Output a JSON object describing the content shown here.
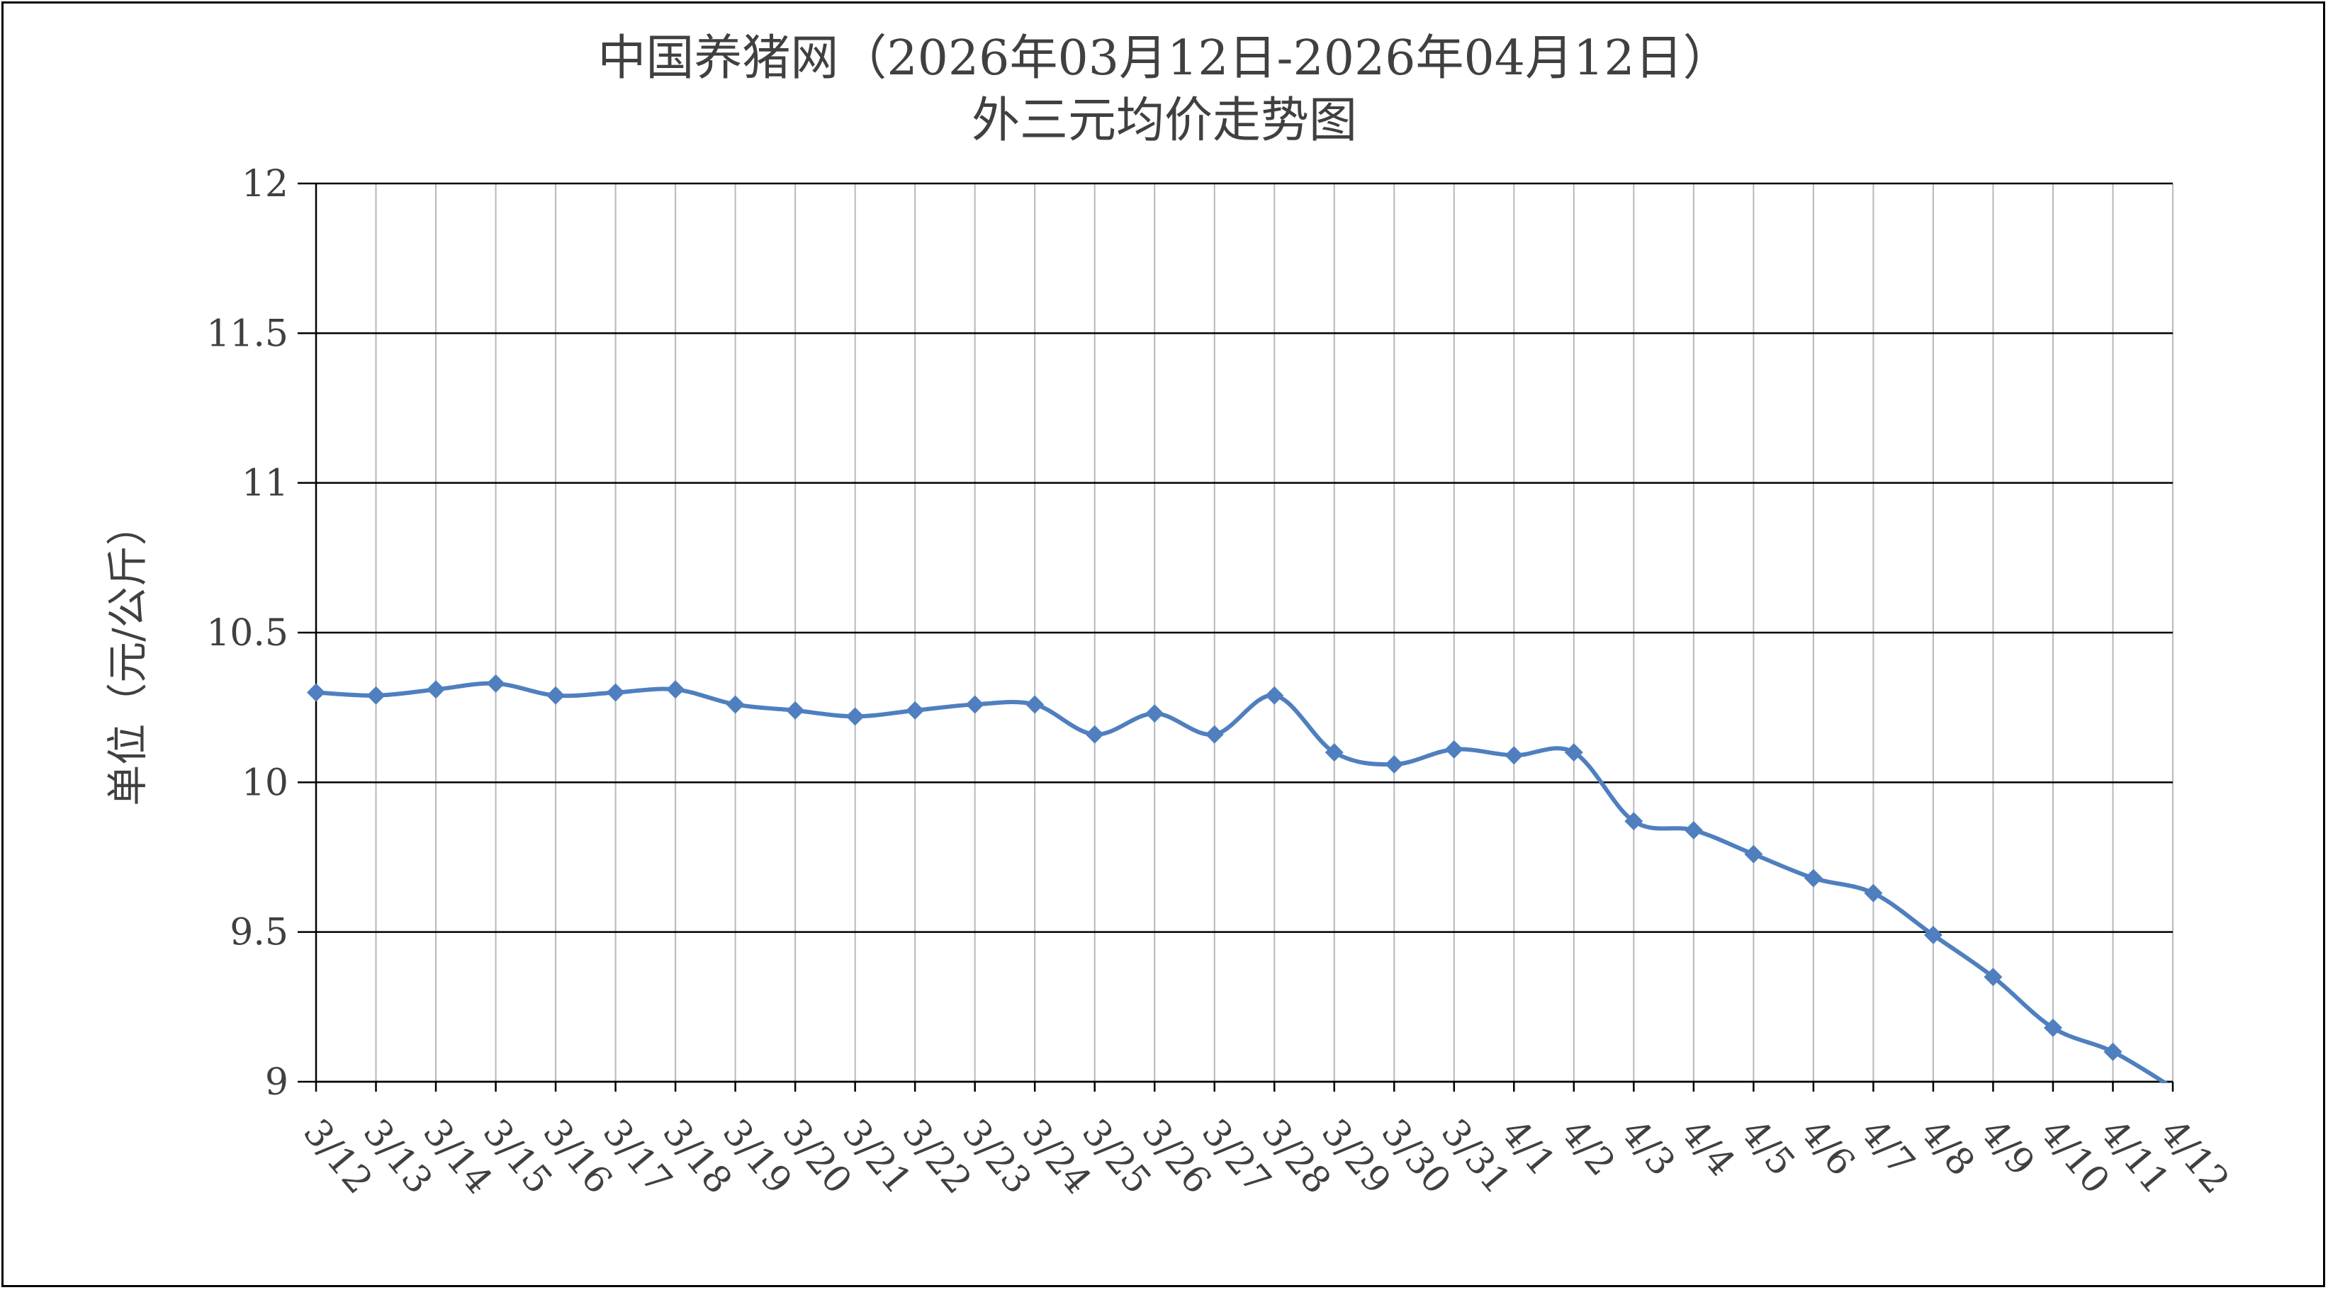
{
  "chart_data": {
    "type": "line",
    "title": "中国养猪网（2026年03月12日-2026年04月12日）",
    "subtitle": "外三元均价走势图",
    "ylabel": "单位（元/公斤）",
    "xlabel": "",
    "ylim": [
      9,
      12
    ],
    "yticks": [
      "9",
      "9.5",
      "10",
      "10.5",
      "11",
      "11.5",
      "12"
    ],
    "ytick_values": [
      9,
      9.5,
      10,
      10.5,
      11,
      11.5,
      12
    ],
    "grid": true,
    "legend": "none",
    "line_color": "#4f7fbf",
    "categories": [
      "3/12",
      "3/13",
      "3/14",
      "3/15",
      "3/16",
      "3/17",
      "3/18",
      "3/19",
      "3/20",
      "3/21",
      "3/22",
      "3/23",
      "3/24",
      "3/25",
      "3/26",
      "3/27",
      "3/28",
      "3/29",
      "3/30",
      "3/31",
      "4/1",
      "4/2",
      "4/3",
      "4/4",
      "4/5",
      "4/6",
      "4/7",
      "4/8",
      "4/9",
      "4/10",
      "4/11",
      "4/12"
    ],
    "values": [
      10.3,
      10.29,
      10.31,
      10.33,
      10.29,
      10.3,
      10.31,
      10.26,
      10.24,
      10.22,
      10.24,
      10.26,
      10.26,
      10.16,
      10.23,
      10.16,
      10.29,
      10.1,
      10.06,
      10.11,
      10.09,
      10.1,
      9.87,
      9.84,
      9.76,
      9.68,
      9.63,
      9.49,
      9.35,
      9.18,
      9.1,
      8.98
    ]
  }
}
